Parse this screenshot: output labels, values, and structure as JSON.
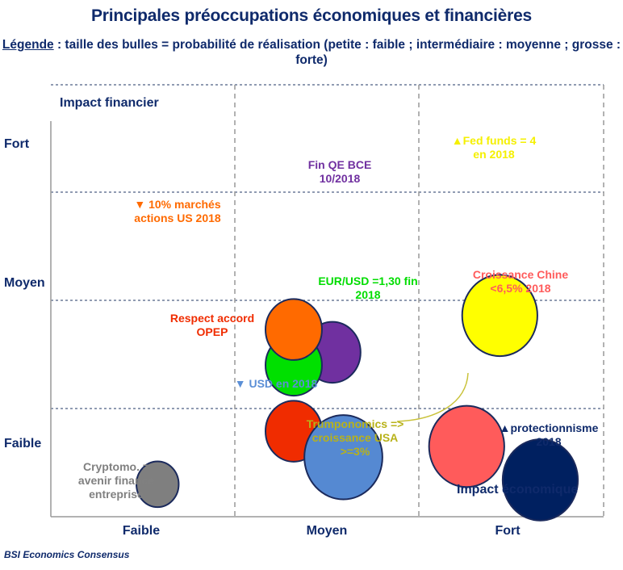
{
  "title": "Principales préoccupations économiques et financières",
  "legend": {
    "label": "Légende",
    "text": " : taille des bulles = probabilité de réalisation (petite : faible ; intermédiaire : moyenne ; grosse : forte)"
  },
  "source": "BSI Economics Consensus",
  "chart_data": {
    "type": "scatter",
    "subtype": "bubble-matrix",
    "title": "Principales préoccupations économiques et financières",
    "xlabel": "Impact économique",
    "ylabel": "Impact financier",
    "x_categories": [
      "Faible",
      "Moyen",
      "Fort"
    ],
    "y_categories": [
      "Faible",
      "Moyen",
      "Fort"
    ],
    "size_meaning": "probabilité de réalisation",
    "size_levels": [
      "faible",
      "moyenne",
      "forte"
    ],
    "grid": true,
    "points": [
      {
        "label": "Cryptomo. = avenir finance entreprise",
        "lines": [
          "Cryptomo. =",
          "avenir finance",
          "entreprise"
        ],
        "x": 0.58,
        "y": 0.3,
        "size": "faible",
        "r": 0.45,
        "color": "#7f7f7f",
        "text_color": "#808080"
      },
      {
        "label": "Fin QE BCE 10/2018",
        "lines": [
          "Fin QE BCE",
          "10/2018"
        ],
        "x": 1.53,
        "y": 1.52,
        "size": "moyenne",
        "r": 0.6,
        "color": "#7030a0",
        "text_color": "#7030a0"
      },
      {
        "label": "EUR/USD =1,30 fin 2018",
        "lines": [
          "EUR/USD =1,30 fin",
          "2018"
        ],
        "x": 1.32,
        "y": 1.4,
        "size": "moyenne",
        "r": 0.6,
        "color": "#00e000",
        "text_color": "#00dd00"
      },
      {
        "label": "▼ 10% marchés actions US 2018",
        "lines": [
          "▼ 10% marchés",
          "actions US 2018"
        ],
        "x": 1.32,
        "y": 1.73,
        "size": "moyenne",
        "r": 0.6,
        "color": "#ff6a00",
        "text_color": "#ff6a00"
      },
      {
        "label": "Respect accord OPEP",
        "lines": [
          "Respect accord",
          "OPEP"
        ],
        "x": 1.32,
        "y": 0.79,
        "size": "moyenne",
        "r": 0.6,
        "color": "#f02c00",
        "text_color": "#f02c00"
      },
      {
        "label": "▼ USD en 2018",
        "lines": [
          "▼ USD en 2018"
        ],
        "x": 1.59,
        "y": 0.55,
        "size": "forte",
        "r": 0.83,
        "color": "#5589d2",
        "text_color": "#5b8fd6"
      },
      {
        "label": "▲Fed funds = 4 en 2018",
        "lines": [
          "▲Fed funds = 4",
          "en 2018"
        ],
        "x": 2.44,
        "y": 1.86,
        "size": "forte",
        "r": 0.8,
        "color": "#ffff00",
        "text_color": "#f5f000"
      },
      {
        "label": "▲protectionnisme 2018",
        "lines": [
          "▲protectionnisme",
          "2018"
        ],
        "x": 2.66,
        "y": 0.34,
        "size": "forte",
        "r": 0.8,
        "color": "#002060",
        "text_color": "#0f2a6b"
      },
      {
        "label": "Croissance Chine <6,5% 2018",
        "lines": [
          "Croissance Chine",
          "<6,5% 2018"
        ],
        "x": 2.26,
        "y": 0.65,
        "size": "forte",
        "r": 0.8,
        "color": "#ff5b5b",
        "text_color": "#ff5b5b"
      },
      {
        "label": "Trumponomics => croissance USA >=3%",
        "lines": [
          "Trumponomics =>",
          "croissance USA",
          ">=3%"
        ],
        "text_color": "#b8b21a",
        "connector_to": "Croissance Chine <6,5% 2018"
      }
    ]
  }
}
